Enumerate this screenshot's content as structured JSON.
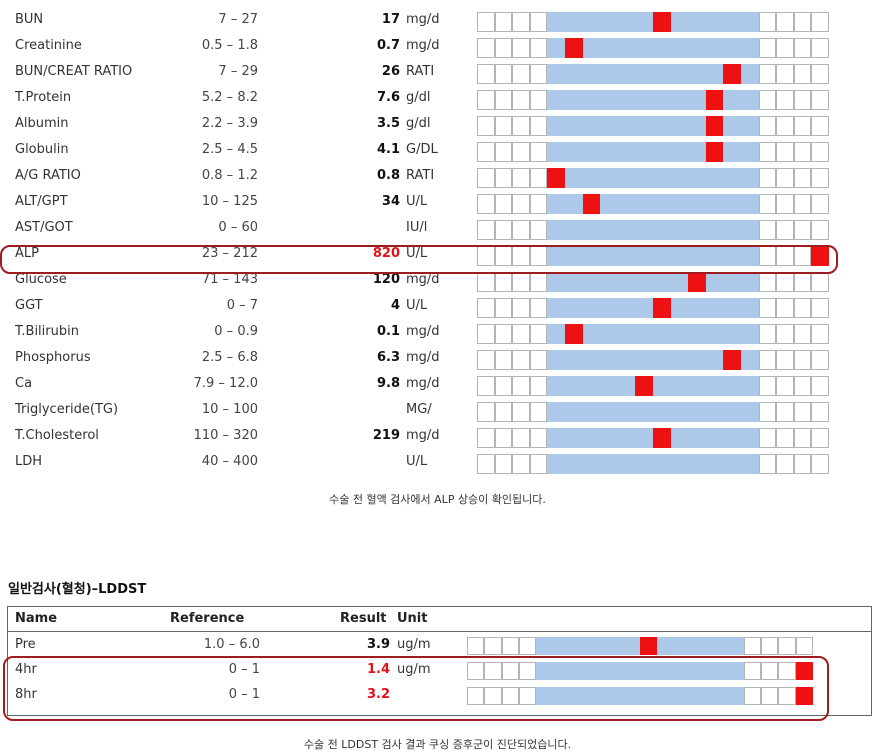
{
  "labs": [
    {
      "name": "BUN",
      "ref": "7 – 27",
      "result": "17",
      "unit": "mg/d",
      "high": false,
      "marker": 10
    },
    {
      "name": "Creatinine",
      "ref": "0.5 – 1.8",
      "result": "0.7",
      "unit": "mg/d",
      "high": false,
      "marker": 5
    },
    {
      "name": "BUN/CREAT RATIO",
      "ref": "7 – 29",
      "result": "26",
      "unit": "RATI",
      "high": false,
      "marker": 14
    },
    {
      "name": "T.Protein",
      "ref": "5.2 – 8.2",
      "result": "7.6",
      "unit": "g/dl",
      "high": false,
      "marker": 13
    },
    {
      "name": "Albumin",
      "ref": "2.2 – 3.9",
      "result": "3.5",
      "unit": "g/dl",
      "high": false,
      "marker": 13
    },
    {
      "name": "Globulin",
      "ref": "2.5 – 4.5",
      "result": "4.1",
      "unit": "G/DL",
      "high": false,
      "marker": 13
    },
    {
      "name": "A/G RATIO",
      "ref": "0.8 – 1.2",
      "result": "0.8",
      "unit": "RATI",
      "high": false,
      "marker": 4
    },
    {
      "name": "ALT/GPT",
      "ref": "10 – 125",
      "result": "34",
      "unit": "U/L",
      "high": false,
      "marker": 6
    },
    {
      "name": "AST/GOT",
      "ref": "0 – 60",
      "result": "",
      "unit": "IU/l",
      "high": false,
      "marker": null
    },
    {
      "name": "ALP",
      "ref": "23 – 212",
      "result": "820",
      "unit": "U/L",
      "high": true,
      "marker": 19
    },
    {
      "name": "Glucose",
      "ref": "71 – 143",
      "result": "120",
      "unit": "mg/d",
      "high": false,
      "marker": 12
    },
    {
      "name": "GGT",
      "ref": "0 – 7",
      "result": "4",
      "unit": "U/L",
      "high": false,
      "marker": 10
    },
    {
      "name": "T.Bilirubin",
      "ref": "0 – 0.9",
      "result": "0.1",
      "unit": "mg/d",
      "high": false,
      "marker": 5
    },
    {
      "name": "Phosphorus",
      "ref": "2.5 – 6.8",
      "result": "6.3",
      "unit": "mg/d",
      "high": false,
      "marker": 14
    },
    {
      "name": "Ca",
      "ref": "7.9 – 12.0",
      "result": "9.8",
      "unit": "mg/d",
      "high": false,
      "marker": 9
    },
    {
      "name": "Triglyceride(TG)",
      "ref": "10 – 100",
      "result": "",
      "unit": "MG/",
      "high": false,
      "marker": null
    },
    {
      "name": "T.Cholesterol",
      "ref": "110 – 320",
      "result": "219",
      "unit": "mg/d",
      "high": false,
      "marker": 10
    },
    {
      "name": "LDH",
      "ref": "40 – 400",
      "result": "",
      "unit": "U/L",
      "high": false,
      "marker": null
    }
  ],
  "caption1": "수술 전 혈액 검사에서 ALP 상승이 확인됩니다.",
  "section_title": "일반검사(혈청)–LDDST",
  "lddst_header": {
    "name": "Name",
    "reference": "Reference",
    "result": "Result",
    "unit": "Unit"
  },
  "lddst": [
    {
      "name": "Pre",
      "ref": "1.0 – 6.0",
      "result": "3.9",
      "unit": "ug/m",
      "high": false,
      "marker": 10
    },
    {
      "name": "4hr",
      "ref": "0 – 1",
      "result": "1.4",
      "unit": "ug/m",
      "high": true,
      "marker": 19
    },
    {
      "name": "8hr",
      "ref": "0 – 1",
      "result": "3.2",
      "unit": "",
      "high": true,
      "marker": 19
    }
  ],
  "caption2": "수술 전 LDDST 검사 결과 쿠싱 증후군이 진단되었습니다.",
  "colors": {
    "range_fill": "#adc9ea",
    "marker": "#ee1111",
    "highlight": "#9e1c20",
    "high_text": "#e0141c"
  }
}
